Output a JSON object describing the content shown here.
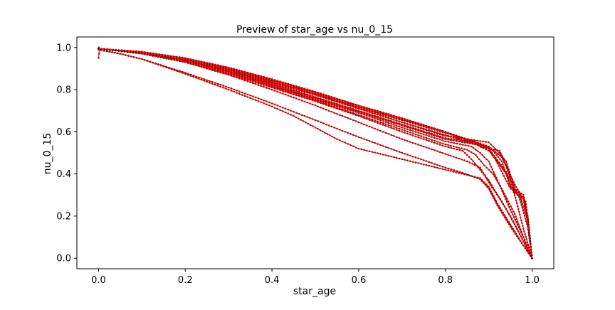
{
  "chart_data": {
    "type": "line",
    "title": "Preview of star_age vs nu_0_15",
    "xlabel": "star_age",
    "ylabel": "nu_0_15",
    "xlim": [
      -0.05,
      1.05
    ],
    "ylim": [
      -0.05,
      1.05
    ],
    "xticks": [
      0.0,
      0.2,
      0.4,
      0.6,
      0.8,
      1.0
    ],
    "xtick_labels": [
      "0.0",
      "0.2",
      "0.4",
      "0.6",
      "0.8",
      "1.0"
    ],
    "yticks": [
      0.0,
      0.2,
      0.4,
      0.6,
      0.8,
      1.0
    ],
    "ytick_labels": [
      "0.0",
      "0.2",
      "0.4",
      "0.6",
      "0.8",
      "1.0"
    ],
    "grid": false,
    "legend": "none",
    "colors": {
      "line": "#ff0000",
      "marker": "#000000"
    },
    "series": [
      {
        "x": [
          0.0,
          0.05,
          0.1,
          0.2,
          0.3,
          0.4,
          0.5,
          0.6,
          0.7,
          0.75,
          0.8,
          0.84,
          0.86,
          0.88,
          0.9,
          0.92,
          0.95,
          0.98,
          1.0
        ],
        "y": [
          0.99,
          0.97,
          0.945,
          0.88,
          0.81,
          0.735,
          0.655,
          0.575,
          0.5,
          0.465,
          0.43,
          0.405,
          0.39,
          0.375,
          0.33,
          0.25,
          0.15,
          0.06,
          0.0
        ]
      },
      {
        "x": [
          0.0,
          0.05,
          0.1,
          0.2,
          0.3,
          0.4,
          0.45,
          0.5,
          0.55,
          0.6,
          0.7,
          0.8,
          0.85,
          0.88,
          0.9,
          0.92,
          0.95,
          0.98,
          1.0
        ],
        "y": [
          0.99,
          0.97,
          0.945,
          0.875,
          0.8,
          0.72,
          0.675,
          0.62,
          0.565,
          0.52,
          0.47,
          0.42,
          0.395,
          0.38,
          0.34,
          0.26,
          0.16,
          0.06,
          0.0
        ]
      },
      {
        "x": [
          0.0,
          0.1,
          0.2,
          0.3,
          0.4,
          0.5,
          0.6,
          0.7,
          0.8,
          0.85,
          0.88,
          0.9,
          0.93,
          0.96,
          0.98,
          1.0
        ],
        "y": [
          0.995,
          0.97,
          0.93,
          0.87,
          0.8,
          0.725,
          0.645,
          0.565,
          0.495,
          0.46,
          0.43,
          0.36,
          0.27,
          0.16,
          0.08,
          0.0
        ]
      },
      {
        "x": [
          0.0,
          0.1,
          0.2,
          0.3,
          0.4,
          0.5,
          0.6,
          0.7,
          0.8,
          0.84,
          0.86,
          0.88,
          0.9,
          0.92,
          0.95,
          0.98,
          1.0
        ],
        "y": [
          0.995,
          0.975,
          0.935,
          0.875,
          0.81,
          0.745,
          0.675,
          0.6,
          0.53,
          0.51,
          0.47,
          0.42,
          0.37,
          0.3,
          0.2,
          0.08,
          0.0
        ]
      },
      {
        "x": [
          0.0,
          0.1,
          0.2,
          0.3,
          0.4,
          0.5,
          0.6,
          0.7,
          0.8,
          0.85,
          0.87,
          0.89,
          0.91,
          0.93,
          0.96,
          0.98,
          1.0
        ],
        "y": [
          0.995,
          0.975,
          0.935,
          0.88,
          0.815,
          0.75,
          0.68,
          0.61,
          0.54,
          0.515,
          0.49,
          0.44,
          0.4,
          0.33,
          0.21,
          0.1,
          0.0
        ]
      },
      {
        "x": [
          0.0,
          0.1,
          0.2,
          0.3,
          0.4,
          0.5,
          0.6,
          0.7,
          0.8,
          0.86,
          0.88,
          0.9,
          0.92,
          0.95,
          0.98,
          1.0
        ],
        "y": [
          0.995,
          0.975,
          0.94,
          0.885,
          0.82,
          0.755,
          0.69,
          0.62,
          0.555,
          0.53,
          0.5,
          0.46,
          0.37,
          0.23,
          0.1,
          0.0
        ]
      },
      {
        "x": [
          0.0,
          0.1,
          0.2,
          0.3,
          0.4,
          0.5,
          0.6,
          0.7,
          0.8,
          0.87,
          0.9,
          0.92,
          0.94,
          0.96,
          0.98,
          1.0
        ],
        "y": [
          0.995,
          0.975,
          0.94,
          0.885,
          0.825,
          0.76,
          0.695,
          0.63,
          0.565,
          0.54,
          0.51,
          0.46,
          0.4,
          0.3,
          0.14,
          0.0
        ]
      },
      {
        "x": [
          0.0,
          0.1,
          0.2,
          0.3,
          0.4,
          0.5,
          0.6,
          0.7,
          0.8,
          0.88,
          0.91,
          0.93,
          0.95,
          0.97,
          0.99,
          1.0
        ],
        "y": [
          0.995,
          0.975,
          0.94,
          0.89,
          0.83,
          0.765,
          0.7,
          0.635,
          0.57,
          0.545,
          0.51,
          0.46,
          0.34,
          0.29,
          0.15,
          0.0
        ]
      },
      {
        "x": [
          0.0,
          0.1,
          0.2,
          0.3,
          0.4,
          0.5,
          0.6,
          0.7,
          0.8,
          0.9,
          0.92,
          0.94,
          0.96,
          0.98,
          0.99,
          1.0
        ],
        "y": [
          0.995,
          0.975,
          0.94,
          0.89,
          0.835,
          0.775,
          0.71,
          0.645,
          0.58,
          0.55,
          0.51,
          0.46,
          0.33,
          0.3,
          0.2,
          0.0
        ]
      },
      {
        "x": [
          0.0,
          0.1,
          0.2,
          0.3,
          0.4,
          0.5,
          0.6,
          0.7,
          0.8,
          0.9,
          0.925,
          0.94,
          0.96,
          0.98,
          0.99,
          1.0
        ],
        "y": [
          0.995,
          0.975,
          0.945,
          0.895,
          0.835,
          0.775,
          0.71,
          0.645,
          0.585,
          0.52,
          0.51,
          0.44,
          0.31,
          0.29,
          0.18,
          0.0
        ]
      },
      {
        "x": [
          0.0,
          0.1,
          0.2,
          0.3,
          0.4,
          0.5,
          0.6,
          0.7,
          0.8,
          0.9,
          0.92,
          0.95,
          0.97,
          0.99,
          1.0
        ],
        "y": [
          0.995,
          0.975,
          0.945,
          0.9,
          0.84,
          0.78,
          0.715,
          0.655,
          0.595,
          0.525,
          0.45,
          0.33,
          0.31,
          0.18,
          0.0
        ]
      },
      {
        "x": [
          0.0,
          0.1,
          0.2,
          0.3,
          0.4,
          0.5,
          0.6,
          0.7,
          0.8,
          0.9,
          0.93,
          0.96,
          0.98,
          0.99,
          1.0
        ],
        "y": [
          0.995,
          0.975,
          0.945,
          0.9,
          0.845,
          0.785,
          0.72,
          0.66,
          0.6,
          0.53,
          0.48,
          0.35,
          0.28,
          0.17,
          0.0
        ]
      },
      {
        "x": [
          0.0,
          0.1,
          0.2,
          0.3,
          0.4,
          0.5,
          0.6,
          0.7,
          0.8,
          0.9,
          0.94,
          0.965,
          0.985,
          1.0
        ],
        "y": [
          0.995,
          0.98,
          0.95,
          0.905,
          0.85,
          0.79,
          0.725,
          0.665,
          0.6,
          0.52,
          0.41,
          0.31,
          0.27,
          0.0
        ]
      },
      {
        "x": [
          0.0,
          0.001,
          0.002,
          0.001,
          0.0
        ],
        "y": [
          0.95,
          0.97,
          0.99,
          1.0,
          0.995
        ]
      }
    ]
  }
}
